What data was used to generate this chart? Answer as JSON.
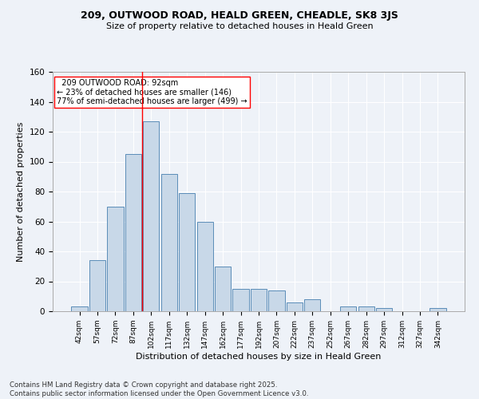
{
  "title1": "209, OUTWOOD ROAD, HEALD GREEN, CHEADLE, SK8 3JS",
  "title2": "Size of property relative to detached houses in Heald Green",
  "xlabel": "Distribution of detached houses by size in Heald Green",
  "ylabel": "Number of detached properties",
  "bar_color": "#c8d8e8",
  "bar_edge_color": "#5b8db8",
  "background_color": "#eef2f8",
  "grid_color": "#ffffff",
  "categories": [
    "42sqm",
    "57sqm",
    "72sqm",
    "87sqm",
    "102sqm",
    "117sqm",
    "132sqm",
    "147sqm",
    "162sqm",
    "177sqm",
    "192sqm",
    "207sqm",
    "222sqm",
    "237sqm",
    "252sqm",
    "267sqm",
    "282sqm",
    "297sqm",
    "312sqm",
    "327sqm",
    "342sqm"
  ],
  "values": [
    3,
    34,
    70,
    105,
    127,
    92,
    79,
    60,
    30,
    15,
    15,
    14,
    6,
    8,
    0,
    3,
    3,
    2,
    0,
    0,
    2
  ],
  "ylim": [
    0,
    160
  ],
  "yticks": [
    0,
    20,
    40,
    60,
    80,
    100,
    120,
    140,
    160
  ],
  "red_line_x": 3.5,
  "annotation_text": "  209 OUTWOOD ROAD: 92sqm\n← 23% of detached houses are smaller (146)\n77% of semi-detached houses are larger (499) →",
  "footer": "Contains HM Land Registry data © Crown copyright and database right 2025.\nContains public sector information licensed under the Open Government Licence v3.0."
}
